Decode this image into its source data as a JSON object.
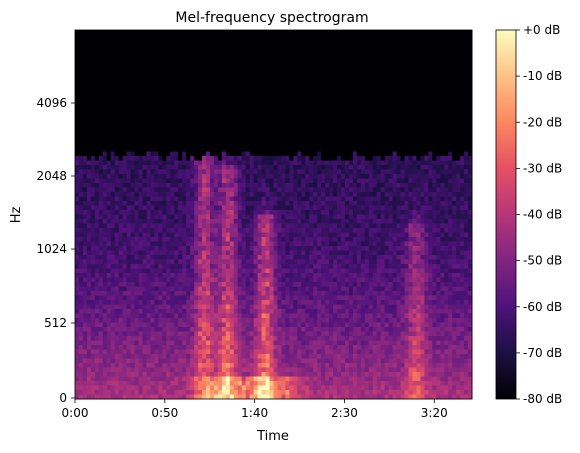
{
  "chart_data": {
    "type": "heatmap",
    "title": "Mel-frequency spectrogram",
    "xlabel": "Time",
    "ylabel": "Hz",
    "x_ticks": [
      "0:00",
      "0:50",
      "1:40",
      "2:30",
      "3:20"
    ],
    "x_tick_seconds": [
      0,
      50,
      100,
      150,
      200
    ],
    "xlim_seconds": [
      0,
      221
    ],
    "y_scale": "mel",
    "y_ticks": [
      "0",
      "512",
      "1024",
      "2048",
      "4096"
    ],
    "y_tick_hz": [
      0,
      512,
      1024,
      2048,
      4096
    ],
    "ylim_hz": [
      0,
      11025
    ],
    "colormap": "magma",
    "colorbar": {
      "ticks": [
        "+0 dB",
        "-10 dB",
        "-20 dB",
        "-30 dB",
        "-40 dB",
        "-50 dB",
        "-60 dB",
        "-70 dB",
        "-80 dB"
      ],
      "tick_values": [
        0,
        -10,
        -20,
        -30,
        -40,
        -50,
        -60,
        -70,
        -80
      ],
      "range_db": [
        -80,
        0
      ]
    },
    "cutoff_hz": 2600,
    "energy_regions": [
      {
        "time_s": 72,
        "hz_low": 0,
        "hz_high": 2400,
        "peak_db": -25
      },
      {
        "time_s": 85,
        "hz_low": 0,
        "hz_high": 2200,
        "peak_db": -22
      },
      {
        "time_s": 106,
        "hz_low": 0,
        "hz_high": 1400,
        "peak_db": -20
      },
      {
        "time_s": 190,
        "hz_low": 0,
        "hz_high": 1300,
        "peak_db": -35
      }
    ],
    "low_band_peak": {
      "time_s_range": [
        78,
        118
      ],
      "hz_high": 120,
      "peak_db": -5
    }
  }
}
